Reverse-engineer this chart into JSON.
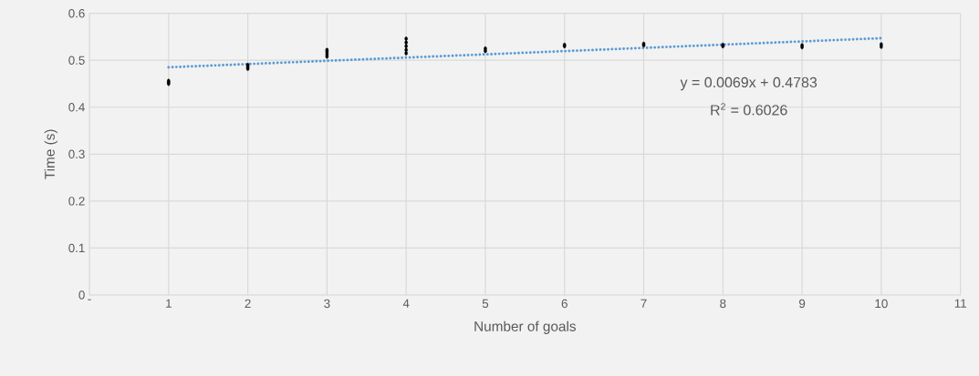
{
  "chart_data": {
    "type": "scatter",
    "xlabel": "Number of goals",
    "ylabel": "Time (s)",
    "xlim": [
      0,
      11
    ],
    "ylim": [
      0,
      0.6
    ],
    "xticks": [
      {
        "value": 0,
        "label": "-"
      },
      1,
      2,
      3,
      4,
      5,
      6,
      7,
      8,
      9,
      10,
      11
    ],
    "yticks": [
      0,
      0.1,
      0.2,
      0.3,
      0.4,
      0.5,
      0.6
    ],
    "grid": true,
    "series": [
      {
        "color": "#000000",
        "marker": "circle",
        "x": [
          1,
          1,
          1,
          2,
          2,
          2,
          3,
          3,
          3,
          3,
          4,
          4,
          4,
          4,
          4,
          5,
          5,
          6,
          6,
          7,
          7,
          8,
          8,
          9,
          9,
          10,
          10
        ],
        "values": [
          0.45,
          0.453,
          0.456,
          0.482,
          0.486,
          0.49,
          0.508,
          0.513,
          0.518,
          0.522,
          0.515,
          0.522,
          0.53,
          0.538,
          0.546,
          0.52,
          0.525,
          0.53,
          0.533,
          0.532,
          0.535,
          0.53,
          0.533,
          0.528,
          0.532,
          0.529,
          0.534
        ]
      },
      {
        "type": "line",
        "color": "#5b9bd5",
        "marker": "none",
        "line_style": "dotted",
        "x": [
          1,
          10
        ],
        "values": [
          0.485,
          0.547
        ]
      }
    ],
    "annotations": [
      "y = 0.0069x + 0.4783",
      "R$^{2}$ = 0.6026"
    ]
  }
}
